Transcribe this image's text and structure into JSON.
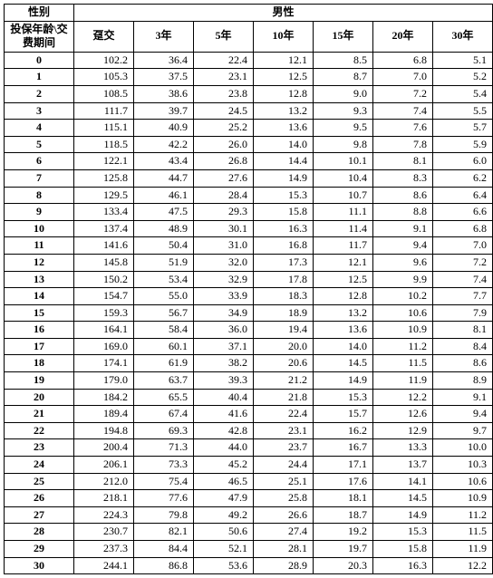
{
  "table": {
    "type": "table",
    "background_color": "#ffffff",
    "border_color": "#000000",
    "font_family": "SimSun",
    "header_fontsize": 12,
    "cell_fontsize": 12,
    "gender_label": "性别",
    "gender_value": "男性",
    "rowheader_label": "投保年龄\\交费期间",
    "columns": [
      "趸交",
      "3年",
      "5年",
      "10年",
      "15年",
      "20年",
      "30年"
    ],
    "col_align": [
      "center",
      "right",
      "right",
      "right",
      "right",
      "right",
      "right",
      "right"
    ],
    "rows": [
      {
        "age": "0",
        "v": [
          "102.2",
          "36.4",
          "22.4",
          "12.1",
          "8.5",
          "6.8",
          "5.1"
        ]
      },
      {
        "age": "1",
        "v": [
          "105.3",
          "37.5",
          "23.1",
          "12.5",
          "8.7",
          "7.0",
          "5.2"
        ]
      },
      {
        "age": "2",
        "v": [
          "108.5",
          "38.6",
          "23.8",
          "12.8",
          "9.0",
          "7.2",
          "5.4"
        ]
      },
      {
        "age": "3",
        "v": [
          "111.7",
          "39.7",
          "24.5",
          "13.2",
          "9.3",
          "7.4",
          "5.5"
        ]
      },
      {
        "age": "4",
        "v": [
          "115.1",
          "40.9",
          "25.2",
          "13.6",
          "9.5",
          "7.6",
          "5.7"
        ]
      },
      {
        "age": "5",
        "v": [
          "118.5",
          "42.2",
          "26.0",
          "14.0",
          "9.8",
          "7.8",
          "5.9"
        ]
      },
      {
        "age": "6",
        "v": [
          "122.1",
          "43.4",
          "26.8",
          "14.4",
          "10.1",
          "8.1",
          "6.0"
        ]
      },
      {
        "age": "7",
        "v": [
          "125.8",
          "44.7",
          "27.6",
          "14.9",
          "10.4",
          "8.3",
          "6.2"
        ]
      },
      {
        "age": "8",
        "v": [
          "129.5",
          "46.1",
          "28.4",
          "15.3",
          "10.7",
          "8.6",
          "6.4"
        ]
      },
      {
        "age": "9",
        "v": [
          "133.4",
          "47.5",
          "29.3",
          "15.8",
          "11.1",
          "8.8",
          "6.6"
        ]
      },
      {
        "age": "10",
        "v": [
          "137.4",
          "48.9",
          "30.1",
          "16.3",
          "11.4",
          "9.1",
          "6.8"
        ]
      },
      {
        "age": "11",
        "v": [
          "141.6",
          "50.4",
          "31.0",
          "16.8",
          "11.7",
          "9.4",
          "7.0"
        ]
      },
      {
        "age": "12",
        "v": [
          "145.8",
          "51.9",
          "32.0",
          "17.3",
          "12.1",
          "9.6",
          "7.2"
        ]
      },
      {
        "age": "13",
        "v": [
          "150.2",
          "53.4",
          "32.9",
          "17.8",
          "12.5",
          "9.9",
          "7.4"
        ]
      },
      {
        "age": "14",
        "v": [
          "154.7",
          "55.0",
          "33.9",
          "18.3",
          "12.8",
          "10.2",
          "7.7"
        ]
      },
      {
        "age": "15",
        "v": [
          "159.3",
          "56.7",
          "34.9",
          "18.9",
          "13.2",
          "10.6",
          "7.9"
        ]
      },
      {
        "age": "16",
        "v": [
          "164.1",
          "58.4",
          "36.0",
          "19.4",
          "13.6",
          "10.9",
          "8.1"
        ]
      },
      {
        "age": "17",
        "v": [
          "169.0",
          "60.1",
          "37.1",
          "20.0",
          "14.0",
          "11.2",
          "8.4"
        ]
      },
      {
        "age": "18",
        "v": [
          "174.1",
          "61.9",
          "38.2",
          "20.6",
          "14.5",
          "11.5",
          "8.6"
        ]
      },
      {
        "age": "19",
        "v": [
          "179.0",
          "63.7",
          "39.3",
          "21.2",
          "14.9",
          "11.9",
          "8.9"
        ]
      },
      {
        "age": "20",
        "v": [
          "184.2",
          "65.5",
          "40.4",
          "21.8",
          "15.3",
          "12.2",
          "9.1"
        ]
      },
      {
        "age": "21",
        "v": [
          "189.4",
          "67.4",
          "41.6",
          "22.4",
          "15.7",
          "12.6",
          "9.4"
        ]
      },
      {
        "age": "22",
        "v": [
          "194.8",
          "69.3",
          "42.8",
          "23.1",
          "16.2",
          "12.9",
          "9.7"
        ]
      },
      {
        "age": "23",
        "v": [
          "200.4",
          "71.3",
          "44.0",
          "23.7",
          "16.7",
          "13.3",
          "10.0"
        ]
      },
      {
        "age": "24",
        "v": [
          "206.1",
          "73.3",
          "45.2",
          "24.4",
          "17.1",
          "13.7",
          "10.3"
        ]
      },
      {
        "age": "25",
        "v": [
          "212.0",
          "75.4",
          "46.5",
          "25.1",
          "17.6",
          "14.1",
          "10.6"
        ]
      },
      {
        "age": "26",
        "v": [
          "218.1",
          "77.6",
          "47.9",
          "25.8",
          "18.1",
          "14.5",
          "10.9"
        ]
      },
      {
        "age": "27",
        "v": [
          "224.3",
          "79.8",
          "49.2",
          "26.6",
          "18.7",
          "14.9",
          "11.2"
        ]
      },
      {
        "age": "28",
        "v": [
          "230.7",
          "82.1",
          "50.6",
          "27.4",
          "19.2",
          "15.3",
          "11.5"
        ]
      },
      {
        "age": "29",
        "v": [
          "237.3",
          "84.4",
          "52.1",
          "28.1",
          "19.7",
          "15.8",
          "11.9"
        ]
      },
      {
        "age": "30",
        "v": [
          "244.1",
          "86.8",
          "53.6",
          "28.9",
          "20.3",
          "16.3",
          "12.2"
        ]
      }
    ]
  }
}
